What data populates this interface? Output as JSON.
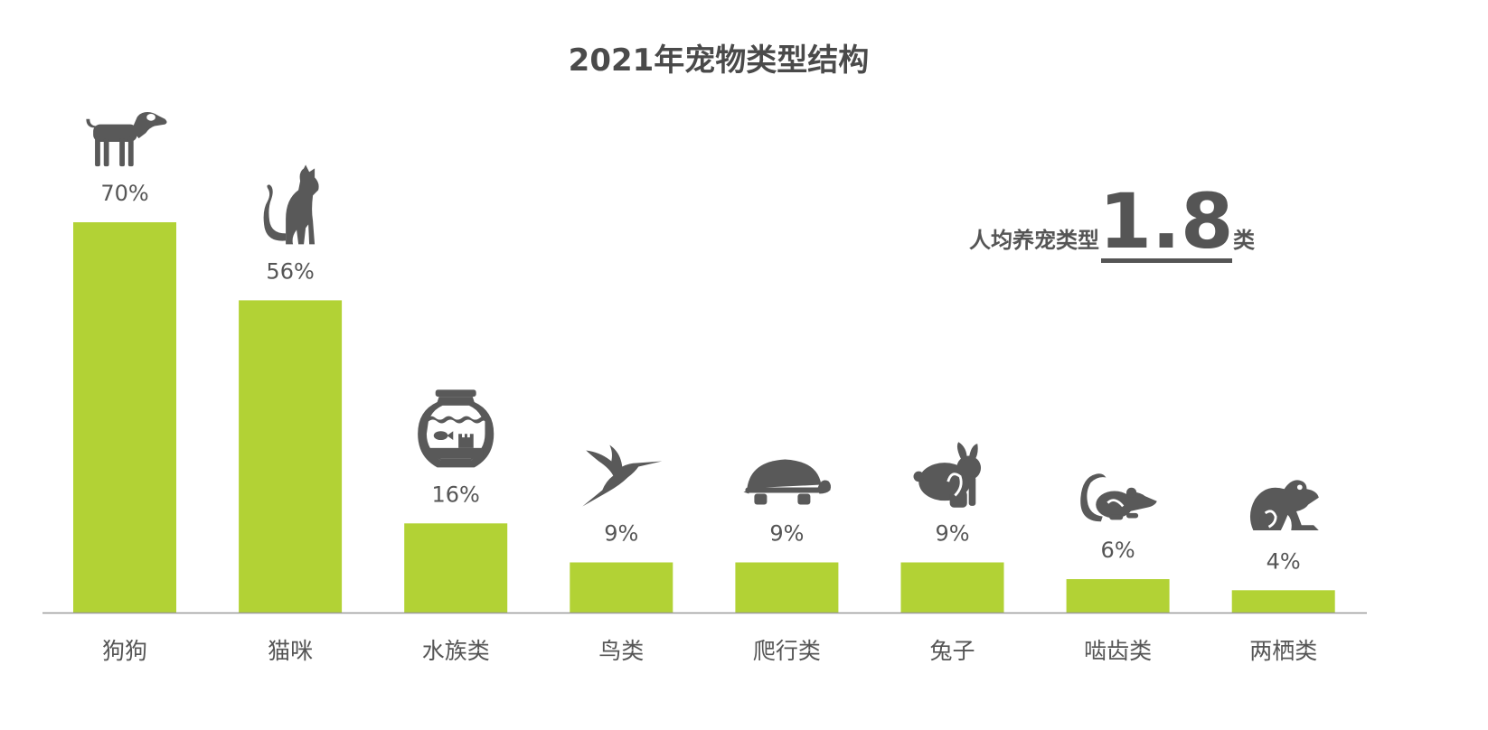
{
  "chart_data": {
    "type": "bar",
    "title": "2021年宠物类型结构",
    "categories": [
      "狗狗",
      "猫咪",
      "水族类",
      "鸟类",
      "爬行类",
      "兔子",
      "啮齿类",
      "两栖类"
    ],
    "values": [
      70,
      56,
      16,
      9,
      9,
      9,
      6,
      4
    ],
    "value_labels": [
      "70%",
      "56%",
      "16%",
      "9%",
      "9%",
      "9%",
      "6%",
      "4%"
    ],
    "icons": [
      "dog-icon",
      "cat-icon",
      "fishbowl-icon",
      "bird-icon",
      "turtle-icon",
      "rabbit-icon",
      "rat-icon",
      "frog-icon"
    ],
    "xlabel": "",
    "ylabel": "",
    "ylim": [
      0,
      70
    ],
    "grid": false,
    "legend": "none",
    "colors": {
      "bar": "#b2d235",
      "text": "#555555",
      "axis": "#999999",
      "icon": "#595959"
    }
  },
  "summary": {
    "prefix": "人均养宠类型",
    "value": "1.8",
    "suffix": "类"
  }
}
